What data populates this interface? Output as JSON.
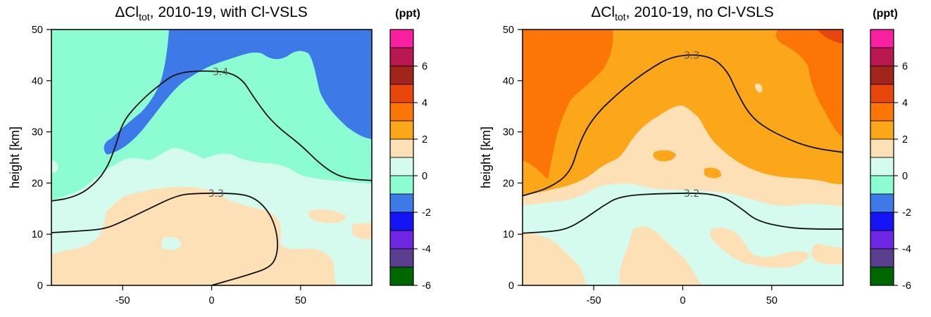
{
  "chart_data": [
    {
      "type": "heatmap",
      "title_prefix": "ΔCl",
      "title_sub": "tot",
      "title_suffix": ", 2010-19, with Cl-VSLS",
      "ylabel": "height [km]",
      "xlim": [
        -90,
        90
      ],
      "ylim": [
        0,
        50
      ],
      "xticks": [
        -50,
        0,
        50
      ],
      "yticks": [
        0,
        10,
        20,
        30,
        40,
        50
      ],
      "contours": [
        {
          "label": "3.4",
          "points": [
            [
              -90,
              16.5
            ],
            [
              -80,
              17
            ],
            [
              -70,
              18.5
            ],
            [
              -60,
              22
            ],
            [
              -54,
              27
            ],
            [
              -50,
              32
            ],
            [
              -40,
              36
            ],
            [
              -30,
              39
            ],
            [
              -20,
              41.5
            ],
            [
              -5,
              42
            ],
            [
              15,
              41.5
            ],
            [
              25,
              36
            ],
            [
              35,
              31.5
            ],
            [
              50,
              27.5
            ],
            [
              60,
              24
            ],
            [
              70,
              21.5
            ],
            [
              80,
              20.7
            ],
            [
              90,
              20.5
            ]
          ]
        },
        {
          "label": "3.3",
          "points": [
            [
              -90,
              10.3
            ],
            [
              -75,
              10.6
            ],
            [
              -60,
              11
            ],
            [
              -50,
              12.5
            ],
            [
              -35,
              15
            ],
            [
              -20,
              17.5
            ],
            [
              -10,
              18
            ],
            [
              15,
              18
            ],
            [
              25,
              17
            ],
            [
              33,
              14
            ],
            [
              37,
              10
            ],
            [
              37,
              6
            ],
            [
              33,
              3.5
            ],
            [
              20,
              2
            ],
            [
              10,
              1
            ],
            [
              0,
              0
            ]
          ]
        }
      ],
      "regions": [
        {
          "level": "-2 to 0",
          "color": "#d4fbee"
        },
        {
          "level": "0 to 2",
          "color": "#fde0b6"
        },
        {
          "level": "-4 to -2",
          "color": "#8cfdd3"
        },
        {
          "level": "-6 to -4",
          "color": "#3d7ae8"
        }
      ]
    },
    {
      "type": "heatmap",
      "title_prefix": "ΔCl",
      "title_sub": "tot",
      "title_suffix": ", 2010-19, no Cl-VSLS",
      "ylabel": "height [km]",
      "xlim": [
        -90,
        90
      ],
      "ylim": [
        0,
        50
      ],
      "xticks": [
        -50,
        0,
        50
      ],
      "yticks": [
        0,
        10,
        20,
        30,
        40,
        50
      ],
      "contours": [
        {
          "label": "3.3",
          "points": [
            [
              -90,
              17.5
            ],
            [
              -75,
              19
            ],
            [
              -63,
              22
            ],
            [
              -58,
              28
            ],
            [
              -50,
              33
            ],
            [
              -35,
              38
            ],
            [
              -20,
              42
            ],
            [
              -5,
              45
            ],
            [
              15,
              45
            ],
            [
              25,
              42
            ],
            [
              30,
              38
            ],
            [
              38,
              33
            ],
            [
              50,
              30
            ],
            [
              70,
              27
            ],
            [
              90,
              26
            ]
          ]
        },
        {
          "label": "3.2",
          "points": [
            [
              -90,
              10.2
            ],
            [
              -75,
              10.5
            ],
            [
              -65,
              11
            ],
            [
              -55,
              13
            ],
            [
              -45,
              15.5
            ],
            [
              -35,
              17.5
            ],
            [
              -10,
              18
            ],
            [
              20,
              18
            ],
            [
              33,
              15
            ],
            [
              42,
              12.5
            ],
            [
              60,
              11.2
            ],
            [
              75,
              11
            ],
            [
              90,
              11
            ]
          ]
        }
      ],
      "regions": [
        {
          "level": "-2 to 0",
          "color": "#d4fbee"
        },
        {
          "level": "0 to 2",
          "color": "#fde0b6"
        },
        {
          "level": "2 to 4",
          "color": "#fca719"
        },
        {
          "level": "4 to 6",
          "color": "#fc7507"
        }
      ]
    }
  ],
  "colorbar": {
    "unit": "(ppt)",
    "tick_labels": [
      "6",
      "4",
      "2",
      "0",
      "-2",
      "-4",
      "-6"
    ],
    "levels_top_to_bottom": [
      {
        "color": "#f81fa0"
      },
      {
        "color": "#b8174f"
      },
      {
        "color": "#a2251b"
      },
      {
        "color": "#e9460e"
      },
      {
        "color": "#fc7507"
      },
      {
        "color": "#fca719"
      },
      {
        "color": "#fde0b6"
      },
      {
        "color": "#d4fbee"
      },
      {
        "color": "#8cfdd3"
      },
      {
        "color": "#3d7ae8"
      },
      {
        "color": "#1414f5"
      },
      {
        "color": "#6e26e4"
      },
      {
        "color": "#5a3f8f"
      },
      {
        "color": "#006600"
      }
    ]
  }
}
